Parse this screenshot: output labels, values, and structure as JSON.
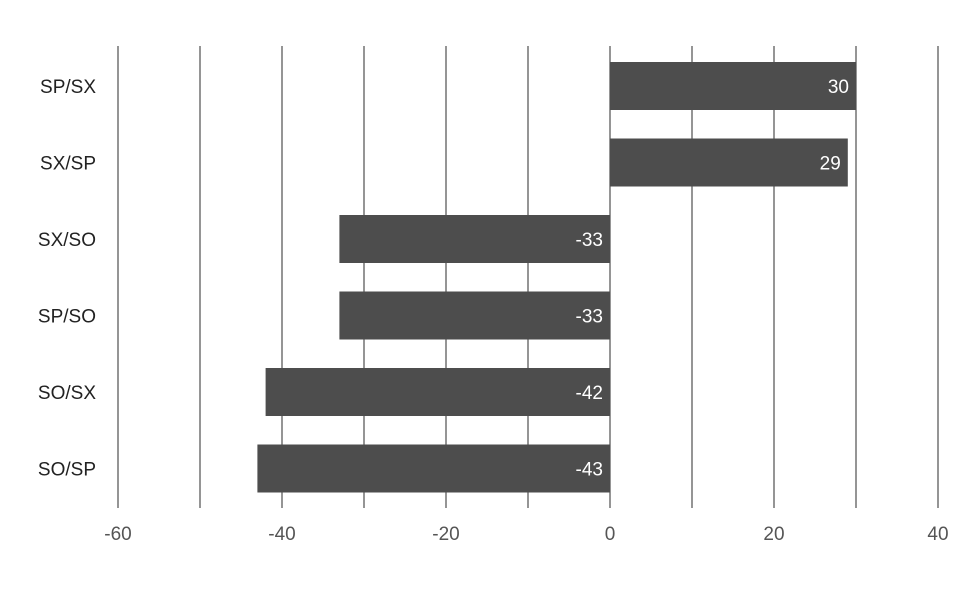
{
  "chart_data": {
    "type": "bar",
    "orientation": "horizontal",
    "categories": [
      "SP/SX",
      "SX/SP",
      "SX/SO",
      "SP/SO",
      "SO/SX",
      "SO/SP"
    ],
    "values": [
      30,
      29,
      -33,
      -33,
      -42,
      -43
    ],
    "data_labels": [
      "30",
      "29",
      "-33",
      "-33",
      "-42",
      "-43"
    ],
    "xlim": [
      -60,
      40
    ],
    "xticks": [
      -60,
      -40,
      -20,
      0,
      20,
      40
    ],
    "xtick_labels": [
      "-60",
      "-40",
      "-20",
      "0",
      "20",
      "40"
    ],
    "grid_step": 10,
    "grid": true,
    "legend": false,
    "title": "",
    "xlabel": "",
    "ylabel": "",
    "colors": {
      "bar": "#4d4d4d",
      "grid": "#2b2b2b",
      "label_inside": "#ffffff",
      "tick_text": "#555555",
      "category_text": "#222222"
    }
  }
}
